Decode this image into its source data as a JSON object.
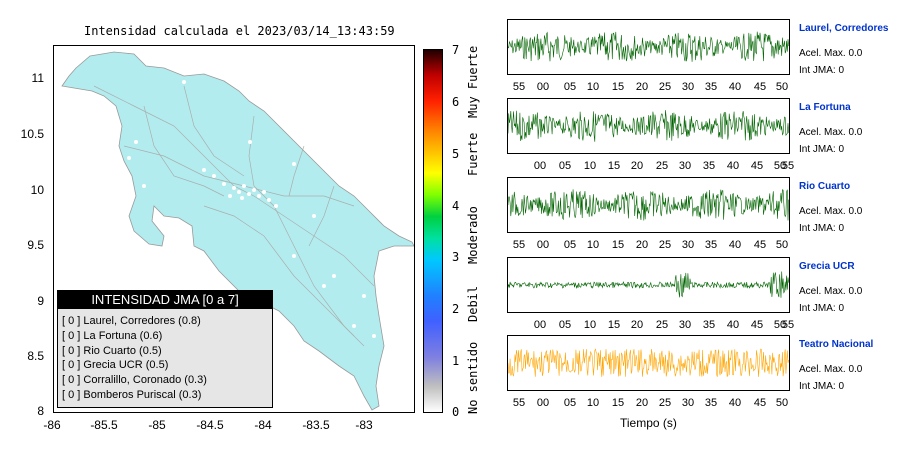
{
  "map": {
    "title": "Intensidad calculada el 2023/03/14_13:43:59",
    "y_ticks": [
      "11",
      "10.5",
      "10",
      "9.5",
      "9",
      "8.5",
      "8"
    ],
    "x_ticks": [
      "-86",
      "-85.5",
      "-85",
      "-84.5",
      "-84",
      "-83.5",
      "-83"
    ],
    "land_color": "#b3ecee",
    "legend": {
      "title": "INTENSIDAD JMA [0 a 7]",
      "items": [
        "[ 0 ]  Laurel, Corredores (0.8)",
        "[ 0 ]  La Fortuna (0.6)",
        "[ 0 ]  Rio Cuarto (0.5)",
        "[ 0 ]  Grecia UCR (0.5)",
        "[ 0 ]  Corralillo, Coronado (0.3)",
        "[ 0 ]  Bomberos Puriscal (0.3)"
      ]
    }
  },
  "colorbar": {
    "ticks": [
      "7",
      "6",
      "5",
      "4",
      "3",
      "2",
      "1",
      "0"
    ],
    "labels": [
      "Muy Fuerte",
      "Fuerte",
      "Moderado",
      "Debil",
      "No sentido"
    ]
  },
  "seismograms": {
    "xlabel": "Tiempo (s)",
    "traces": [
      {
        "name": "Laurel, Corredores",
        "accel": "Acel. Max. 0.0",
        "int": "Int JMA: 0",
        "color": "#006400",
        "ticks": [
          "55",
          "00",
          "05",
          "10",
          "15",
          "20",
          "25",
          "30",
          "35",
          "40",
          "45",
          "50"
        ]
      },
      {
        "name": "La Fortuna",
        "accel": "Acel. Max. 0.0",
        "int": "Int JMA: 0",
        "color": "#006400",
        "ticks": [
          "00",
          "05",
          "10",
          "15",
          "20",
          "25",
          "30",
          "35",
          "40",
          "45",
          "50",
          "55"
        ]
      },
      {
        "name": "Rio Cuarto",
        "accel": "Acel. Max. 0.0",
        "int": "Int JMA: 0",
        "color": "#006400",
        "ticks": [
          "55",
          "00",
          "05",
          "10",
          "15",
          "20",
          "25",
          "30",
          "35",
          "40",
          "45",
          "50"
        ]
      },
      {
        "name": "Grecia UCR",
        "accel": "Acel. Max. 0.0",
        "int": "Int JMA: 0",
        "color": "#006400",
        "ticks": [
          "00",
          "05",
          "10",
          "15",
          "20",
          "25",
          "30",
          "35",
          "40",
          "45",
          "50",
          "55"
        ]
      },
      {
        "name": "Teatro Nacional",
        "accel": "Acel. Max. 0.0",
        "int": "Int JMA: 0",
        "color": "#ffa500",
        "ticks": [
          "55",
          "00",
          "05",
          "10",
          "15",
          "20",
          "25",
          "30",
          "35",
          "40",
          "45",
          "50"
        ]
      }
    ]
  }
}
